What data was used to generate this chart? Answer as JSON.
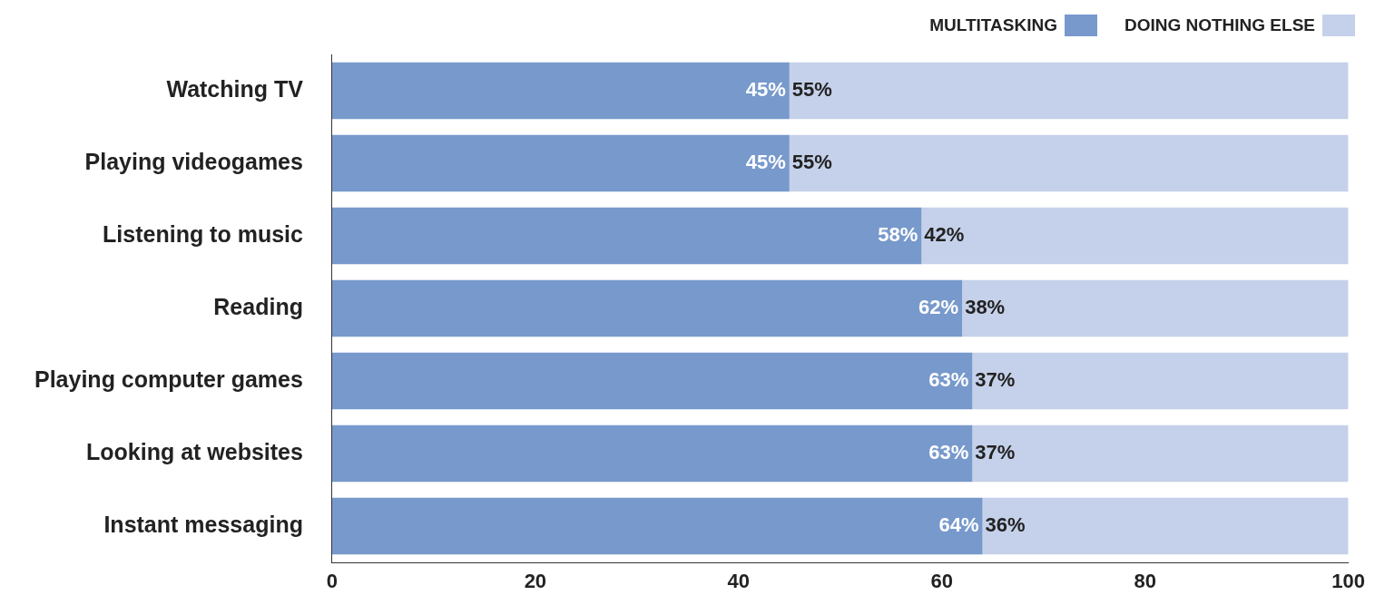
{
  "chart_data": {
    "type": "bar",
    "orientation": "horizontal",
    "stacked": true,
    "categories": [
      "Watching TV",
      "Playing videogames",
      "Listening to music",
      "Reading",
      "Playing computer games",
      "Looking at websites",
      "Instant messaging"
    ],
    "series": [
      {
        "name": "MULTITASKING",
        "color": "#7799cc",
        "values": [
          45,
          45,
          58,
          62,
          63,
          63,
          64
        ],
        "value_labels": [
          "45%",
          "45%",
          "58%",
          "62%",
          "63%",
          "63%",
          "64%"
        ]
      },
      {
        "name": "DOING NOTHING ELSE",
        "color": "#c5d1ea",
        "values": [
          55,
          55,
          42,
          38,
          37,
          37,
          36
        ],
        "value_labels": [
          "55%",
          "55%",
          "42%",
          "38%",
          "37%",
          "37%",
          "36%"
        ]
      }
    ],
    "xlim": [
      0,
      100
    ],
    "xticks": [
      0,
      20,
      40,
      60,
      80,
      100
    ],
    "grid": false,
    "legend": "top right"
  }
}
